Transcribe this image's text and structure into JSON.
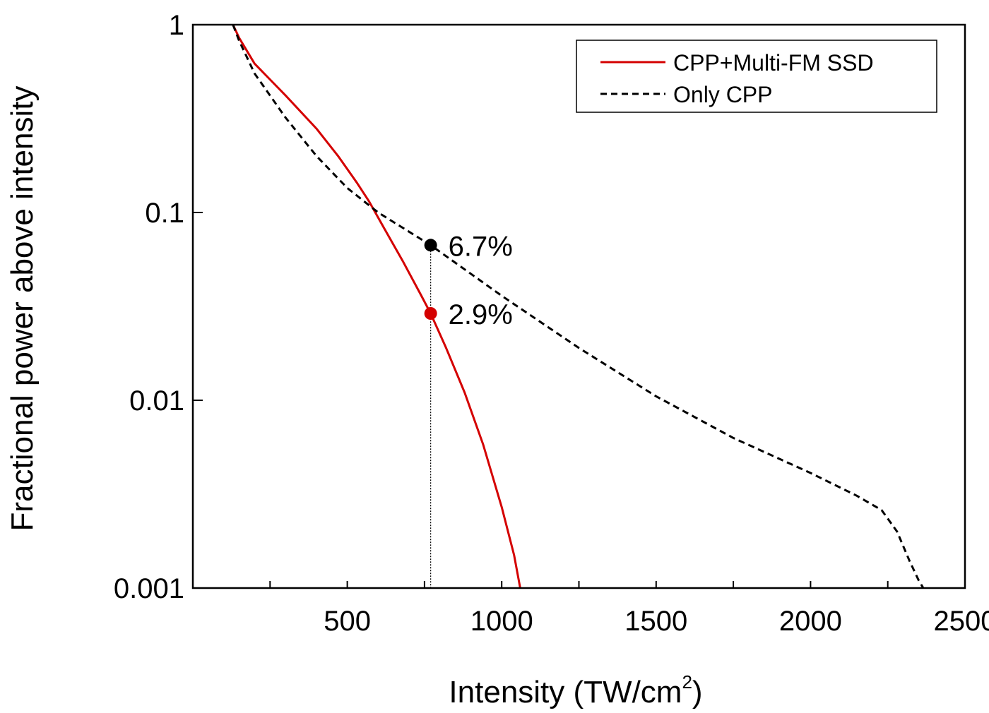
{
  "chart_data": {
    "type": "line",
    "title": "",
    "xlabel_main": "Intensity (TW/cm",
    "xlabel_sup": "2",
    "xlabel_close": ")",
    "ylabel": "Fractional power above intensity",
    "xlim": [
      0,
      2500
    ],
    "ylim": [
      0.001,
      1
    ],
    "yscale": "log",
    "grid": false,
    "legend_position": "top-right",
    "x_ticks": [
      {
        "value": 250,
        "label": ""
      },
      {
        "value": 500,
        "label": "500"
      },
      {
        "value": 750,
        "label": ""
      },
      {
        "value": 1000,
        "label": "1000"
      },
      {
        "value": 1250,
        "label": ""
      },
      {
        "value": 1500,
        "label": "1500"
      },
      {
        "value": 1750,
        "label": ""
      },
      {
        "value": 2000,
        "label": "2000"
      },
      {
        "value": 2250,
        "label": ""
      },
      {
        "value": 2500,
        "label": "2500"
      }
    ],
    "y_ticks": [
      {
        "value": 1,
        "label": "1"
      },
      {
        "value": 0.1,
        "label": "0.1"
      },
      {
        "value": 0.01,
        "label": "0.01"
      },
      {
        "value": 0.001,
        "label": "0.001"
      }
    ],
    "series": [
      {
        "name": "CPP+Multi-FM SSD",
        "color": "#d40000",
        "dash": "solid",
        "x": [
          130,
          150,
          200,
          300,
          400,
          470,
          530,
          570,
          620,
          680,
          740,
          770,
          820,
          880,
          940,
          1000,
          1040,
          1060
        ],
        "y": [
          1.0,
          0.85,
          0.62,
          0.42,
          0.28,
          0.2,
          0.145,
          0.115,
          0.082,
          0.055,
          0.036,
          0.029,
          0.019,
          0.011,
          0.0058,
          0.0027,
          0.0015,
          0.001
        ]
      },
      {
        "name": "Only CPP",
        "color": "#000000",
        "dash": "dashed",
        "x": [
          130,
          150,
          200,
          300,
          400,
          500,
          600,
          770,
          1000,
          1250,
          1500,
          1750,
          2000,
          2150,
          2230,
          2280,
          2320,
          2350,
          2365
        ],
        "y": [
          1.0,
          0.82,
          0.55,
          0.32,
          0.2,
          0.135,
          0.1,
          0.067,
          0.036,
          0.019,
          0.0105,
          0.0063,
          0.0041,
          0.0031,
          0.0026,
          0.002,
          0.0014,
          0.0011,
          0.001
        ]
      }
    ],
    "markers": [
      {
        "x": 770,
        "y": 0.067,
        "color": "#000000",
        "label": "6.7%"
      },
      {
        "x": 770,
        "y": 0.029,
        "color": "#d40000",
        "label": "2.9%"
      }
    ],
    "vline": {
      "x": 770,
      "color": "#000000"
    }
  }
}
